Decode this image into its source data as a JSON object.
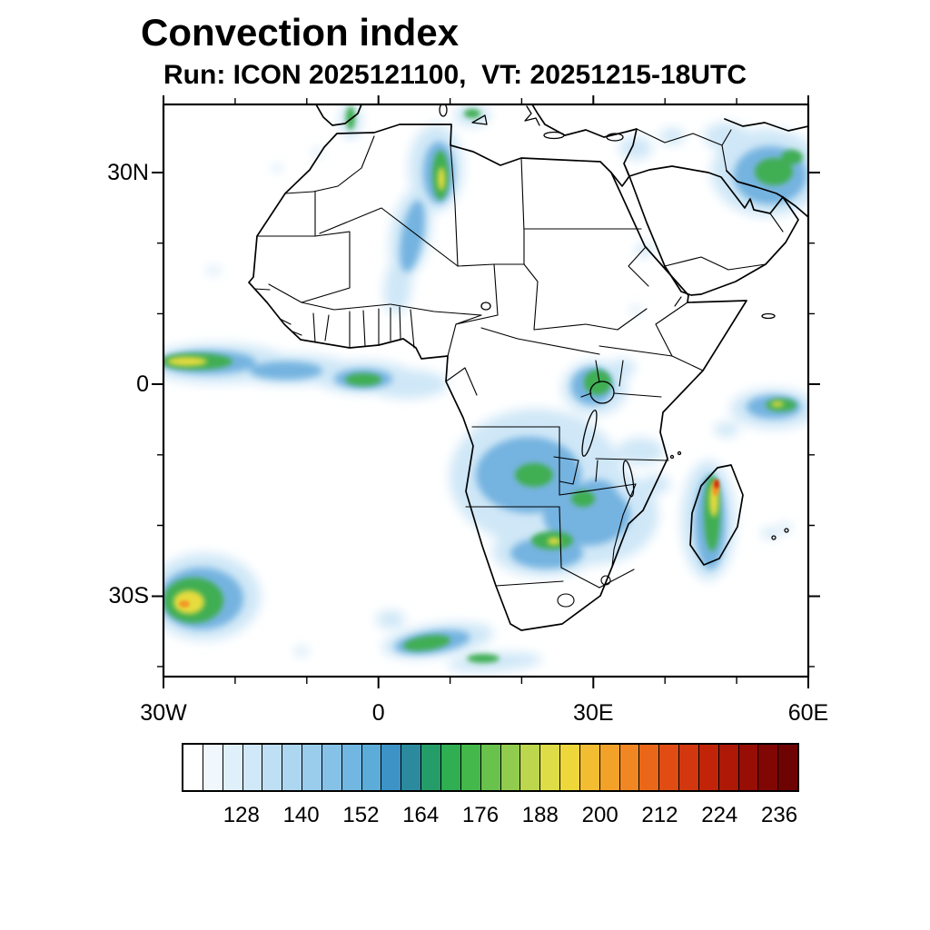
{
  "title": "Convection index",
  "subtitle": "Run: ICON 2025121100,  VT: 20251215-18UTC",
  "axes": {
    "x": [
      "30W",
      "0",
      "30E",
      "60E"
    ],
    "y": [
      "30N",
      "0",
      "30S"
    ]
  },
  "colorbar": {
    "labels": [
      "128",
      "140",
      "152",
      "164",
      "176",
      "188",
      "200",
      "212",
      "224",
      "236"
    ],
    "level_min": 116,
    "level_max": 240,
    "level_step": 4,
    "colors": [
      "#ffffff",
      "#f0f8fd",
      "#e0f0fa",
      "#d0e8f7",
      "#bfdff4",
      "#add6f0",
      "#9accec",
      "#86c2e7",
      "#71b7e1",
      "#5cacda",
      "#3d93c6",
      "#2b8a9e",
      "#259d68",
      "#2fae52",
      "#45b84b",
      "#68c24c",
      "#92cc4e",
      "#bcd64e",
      "#dedd48",
      "#eed73b",
      "#f2bd31",
      "#f3a229",
      "#f08723",
      "#ea671a",
      "#e04c13",
      "#d2370f",
      "#c22409",
      "#ad1807",
      "#970e05",
      "#800704",
      "#6e0402"
    ]
  },
  "chart_data": {
    "type": "heatmap",
    "title": "Convection index",
    "model_run": "ICON 2025121100",
    "valid_time": "20251215-18UTC",
    "projection": "lat-lon map of Africa, Arabia and surrounding oceans",
    "lon_range": [
      -30,
      60
    ],
    "lat_range": [
      -41,
      40
    ],
    "x_ticks": [
      "30W",
      "0",
      "30E",
      "60E"
    ],
    "y_ticks": [
      "30N",
      "0",
      "30S"
    ],
    "grid": false,
    "legend_position": "bottom horizontal colorbar",
    "color_levels": {
      "min": 116,
      "max": 240,
      "step": 4,
      "labeled": [
        128,
        140,
        152,
        164,
        176,
        188,
        200,
        212,
        224,
        236
      ]
    },
    "active_regions": [
      {
        "region": "Equatorial Atlantic ITCZ band",
        "lon": [
          -30,
          -10
        ],
        "lat": [
          1,
          7
        ],
        "peak": 200
      },
      {
        "region": "Gulf of Guinea / West African coast",
        "lon": [
          -10,
          8
        ],
        "lat": [
          1,
          6
        ],
        "peak": 180
      },
      {
        "region": "Algeria-Tunisia plume over northern Sahara",
        "lon": [
          1,
          10
        ],
        "lat": [
          17,
          37
        ],
        "peak": 188
      },
      {
        "region": "Levant / eastern Mediterranean",
        "lon": [
          33,
          38
        ],
        "lat": [
          30,
          36
        ],
        "peak": 170
      },
      {
        "region": "Persian Gulf / southern Iran",
        "lon": [
          47,
          60
        ],
        "lat": [
          23,
          33
        ],
        "peak": 195
      },
      {
        "region": "Lake Victoria / East Africa",
        "lon": [
          29,
          36
        ],
        "lat": [
          -4,
          3
        ],
        "peak": 200
      },
      {
        "region": "Congo basin / Angola / Zambia",
        "lon": [
          16,
          33
        ],
        "lat": [
          -19,
          -4
        ],
        "peak": 205
      },
      {
        "region": "Eastern Madagascar",
        "lon": [
          46,
          51
        ],
        "lat": [
          -23,
          -12
        ],
        "peak": 225
      },
      {
        "region": "Southwest Indian Ocean",
        "lon": [
          50,
          60
        ],
        "lat": [
          -9,
          -3
        ],
        "peak": 190
      },
      {
        "region": "Subtropical South Atlantic",
        "lon": [
          -30,
          -20
        ],
        "lat": [
          -34,
          -25
        ],
        "peak": 210
      },
      {
        "region": "Southern Ocean frontal bands",
        "lon": [
          -8,
          15
        ],
        "lat": [
          -40,
          -33
        ],
        "peak": 185
      }
    ]
  }
}
